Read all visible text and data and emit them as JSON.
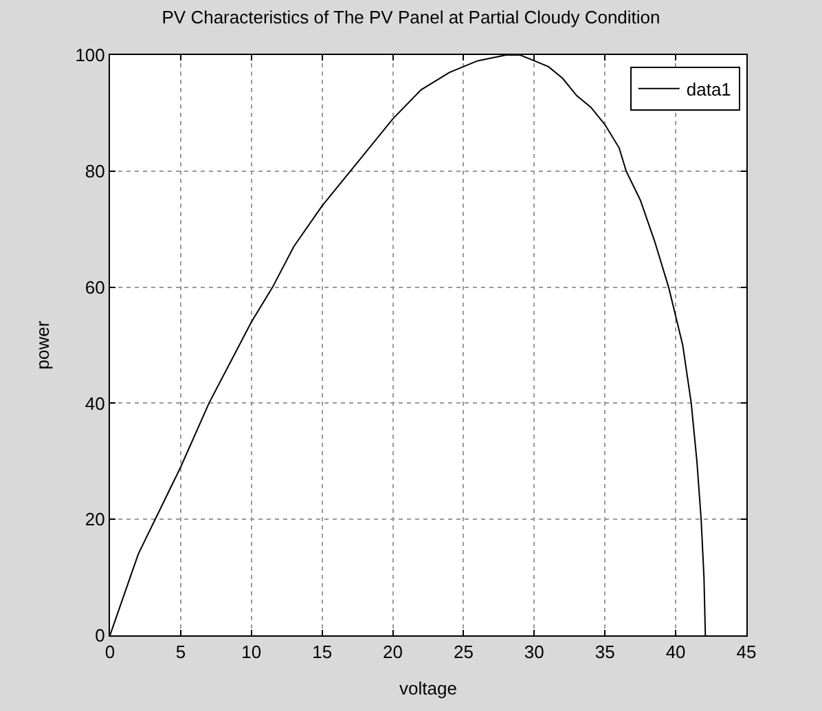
{
  "chart_data": {
    "type": "line",
    "title": "PV Characteristics of The PV Panel at Partial Cloudy Condition",
    "xlabel": "voltage",
    "ylabel": "power",
    "x": [
      0,
      1,
      2,
      3.2,
      5,
      7,
      10,
      11.5,
      13,
      15,
      17,
      20,
      22,
      24,
      25,
      26,
      27,
      28,
      29,
      30,
      31,
      32,
      33,
      34,
      35,
      36,
      36.5,
      37.5,
      38.5,
      39.5,
      40.5,
      41.1,
      41.5,
      41.8,
      42,
      42.1
    ],
    "series": [
      {
        "name": "data1",
        "color": "#000000",
        "values": [
          0,
          7,
          14,
          20,
          29,
          40,
          54,
          60,
          67,
          74,
          80,
          89,
          94,
          97,
          98,
          99,
          99.5,
          100,
          100,
          99,
          98,
          96,
          93,
          91,
          88,
          84,
          80,
          75,
          68,
          60,
          50,
          40,
          30,
          20,
          10,
          0
        ]
      }
    ],
    "xlim": [
      0,
      45
    ],
    "ylim": [
      0,
      100
    ],
    "xticks": [
      0,
      5,
      10,
      15,
      20,
      25,
      30,
      35,
      40,
      45
    ],
    "yticks": [
      0,
      20,
      40,
      60,
      80,
      100
    ],
    "grid": true,
    "legend": "top right",
    "marker": "none",
    "line_style": "solid"
  }
}
